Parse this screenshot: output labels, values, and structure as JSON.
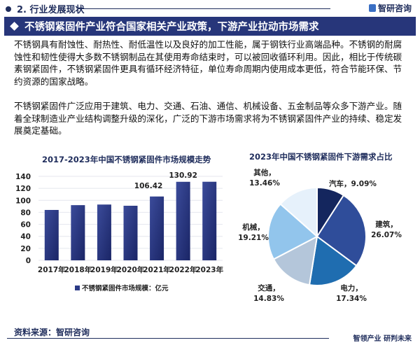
{
  "header": {
    "section": "2. 行业发展现状",
    "brand": "智研咨询"
  },
  "banner": {
    "title": "不锈钢紧固件产业符合国家相关产业政策，下游产业拉动市场需求"
  },
  "paragraphs": [
    "不锈钢具有耐蚀性、耐热性、耐低温性以及良好的加工性能，属于钢铁行业高端品种。不锈钢的耐腐蚀性和韧性使得大多数不锈钢制品在其使用寿命结束时，可以被回收循环利用。因此，相比于传统碳素钢紧固件，不锈钢紧固件更具有循环经济特征，单位寿命周期内使用成本更低，符合节能环保、节约资源的国家战略。",
    "不锈钢紧固件广泛应用于建筑、电力、交通、石油、通信、机械设备、五金制品等众多下游产业。随着全球制造业产业结构调整升级的深化，广泛的下游市场需求将为不锈钢紧固件产业的持续、稳定发展奠定基础。"
  ],
  "chart_data": [
    {
      "type": "bar",
      "title": "2017-2023年中国不锈钢紧固件市场规模走势",
      "categories": [
        "2017年",
        "2018年",
        "2019年",
        "2020年",
        "2021年",
        "2022年",
        "2023年"
      ],
      "values": [
        84,
        92,
        93,
        91,
        106.42,
        130.92,
        131
      ],
      "data_labels": [
        "",
        "",
        "",
        "",
        "106.42",
        "130.92",
        ""
      ],
      "yticks": [
        "0",
        "20",
        "40",
        "60",
        "80",
        "100",
        "120",
        "140"
      ],
      "ylim": [
        0,
        140
      ],
      "grid": true,
      "legend": "不锈钢紧固件市场规模：亿元",
      "legend_position": "bottom",
      "color": "#2b3a86"
    },
    {
      "type": "pie",
      "title": "2023年中国不锈钢紧固件下游需求占比",
      "slices": [
        {
          "label": "汽车，9.09%",
          "value": 9.09,
          "color": "#14265e"
        },
        {
          "label": "建筑，26.07%",
          "value": 26.07,
          "color": "#2f4d9a"
        },
        {
          "label": "电力，17.34%",
          "value": 17.34,
          "color": "#1f6db0"
        },
        {
          "label": "交通，14.83%",
          "value": 14.83,
          "color": "#b4c6da"
        },
        {
          "label": "机械，19.21%",
          "value": 19.21,
          "color": "#92c5ec"
        },
        {
          "label": "其他，13.46%",
          "value": 13.46,
          "color": "#e6f1fb"
        }
      ]
    }
  ],
  "footer": {
    "source": "资料来源：智研咨询",
    "slogan": "智领产业 研判未来"
  }
}
